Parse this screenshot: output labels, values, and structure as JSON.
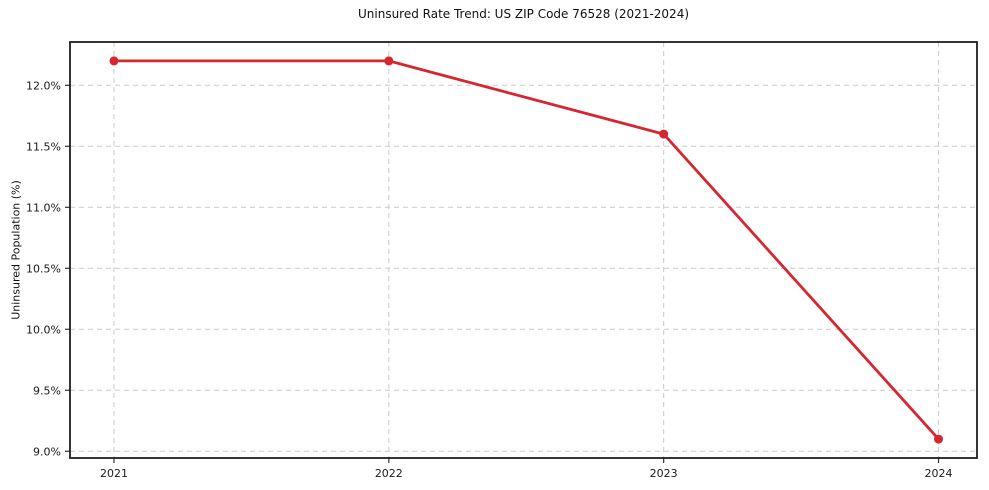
{
  "chart_data": {
    "type": "line",
    "title": "Uninsured Rate Trend: US ZIP Code 76528 (2021-2024)",
    "xlabel": "",
    "ylabel": "Uninsured Population (%)",
    "x": [
      2021,
      2022,
      2023,
      2024
    ],
    "x_tick_labels": [
      "2021",
      "2022",
      "2023",
      "2024"
    ],
    "series": [
      {
        "name": "Uninsured Population (%)",
        "values": [
          12.2,
          12.2,
          11.6,
          9.1
        ]
      }
    ],
    "y_ticks": [
      9.0,
      9.5,
      10.0,
      10.5,
      11.0,
      11.5,
      12.0
    ],
    "y_tick_labels": [
      "9.0%",
      "9.5%",
      "10.0%",
      "10.5%",
      "11.0%",
      "11.5%",
      "12.0%"
    ],
    "xlim": [
      2020.84,
      2024.14
    ],
    "ylim": [
      8.945,
      12.355
    ],
    "grid": true,
    "grid_style": "dashed",
    "legend": false,
    "line_color": "#d62730",
    "marker": "circle",
    "marker_radius": 4.5
  }
}
